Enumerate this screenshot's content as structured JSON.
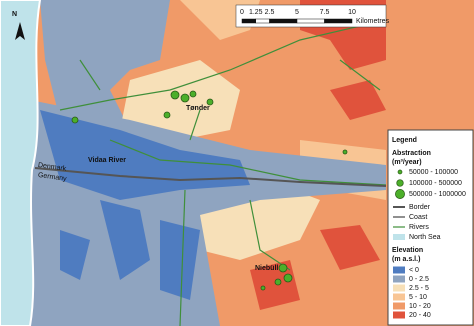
{
  "map": {
    "north": "N",
    "scale_bar": {
      "ticks": [
        0,
        1.25,
        2.5,
        5,
        7.5,
        10
      ],
      "unit": "Kilometres"
    },
    "places": {
      "tonder": "Tønder",
      "vidaa": "Vidaa River",
      "denmark": "Denmark",
      "germany": "Germany",
      "niebull": "Niebüll"
    }
  },
  "legend": {
    "title": "Legend",
    "abstraction": "Abstraction",
    "abstraction_unit": "(m³/year)",
    "abstraction_classes": [
      "50000 - 100000",
      "100000 - 500000",
      "500000 - 1000000"
    ],
    "lines": [
      "Border",
      "Coast",
      "Rivers"
    ],
    "north_sea": "North Sea",
    "elevation": "Elevation",
    "elevation_unit": "(m a.s.l.)",
    "elevation_classes": [
      {
        "label": "< 0",
        "color": "#4f7cc0"
      },
      {
        "label": "0 - 2.5",
        "color": "#8fa4c0"
      },
      {
        "label": "2.5 - 5",
        "color": "#f7e0b8"
      },
      {
        "label": "5 - 10",
        "color": "#f8c594"
      },
      {
        "label": "10 - 20",
        "color": "#f09a68"
      },
      {
        "label": "20 - 40",
        "color": "#e0533c"
      }
    ]
  }
}
